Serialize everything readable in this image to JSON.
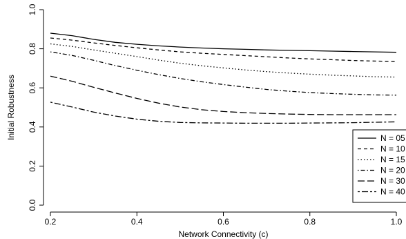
{
  "chart_data": {
    "type": "line",
    "title": "",
    "xlabel": "Network Connectivity (c)",
    "ylabel": "Initial Robustness",
    "xlim": [
      0.2,
      1.0
    ],
    "ylim": [
      0.0,
      1.0
    ],
    "x_ticks": [
      "0.2",
      "0.4",
      "0.6",
      "0.8",
      "1.0"
    ],
    "y_ticks": [
      "0.0",
      "0.2",
      "0.4",
      "0.6",
      "0.8",
      "1.0"
    ],
    "grid": false,
    "legend_position": "bottom-right",
    "x": [
      0.2,
      0.25,
      0.3,
      0.35,
      0.4,
      0.45,
      0.5,
      0.55,
      0.6,
      0.65,
      0.7,
      0.75,
      0.8,
      0.85,
      0.9,
      0.95,
      1.0
    ],
    "series": [
      {
        "name": "N = 05",
        "dash": "solid",
        "values": [
          0.88,
          0.867,
          0.848,
          0.833,
          0.823,
          0.815,
          0.809,
          0.804,
          0.8,
          0.797,
          0.794,
          0.792,
          0.79,
          0.788,
          0.786,
          0.784,
          0.782
        ]
      },
      {
        "name": "N = 10",
        "dash": "dashed",
        "values": [
          0.855,
          0.844,
          0.83,
          0.817,
          0.805,
          0.794,
          0.784,
          0.777,
          0.771,
          0.765,
          0.759,
          0.753,
          0.748,
          0.744,
          0.74,
          0.737,
          0.735
        ]
      },
      {
        "name": "N = 15",
        "dash": "dotted",
        "values": [
          0.825,
          0.812,
          0.794,
          0.777,
          0.76,
          0.742,
          0.726,
          0.713,
          0.702,
          0.692,
          0.683,
          0.676,
          0.67,
          0.665,
          0.661,
          0.657,
          0.655
        ]
      },
      {
        "name": "N = 20",
        "dash": "dotdash",
        "values": [
          0.784,
          0.766,
          0.741,
          0.714,
          0.69,
          0.668,
          0.648,
          0.631,
          0.617,
          0.604,
          0.592,
          0.583,
          0.576,
          0.571,
          0.567,
          0.564,
          0.563
        ]
      },
      {
        "name": "N = 30",
        "dash": "longdash",
        "values": [
          0.66,
          0.634,
          0.603,
          0.574,
          0.546,
          0.522,
          0.502,
          0.488,
          0.479,
          0.473,
          0.469,
          0.466,
          0.464,
          0.463,
          0.463,
          0.463,
          0.463
        ]
      },
      {
        "name": "N = 40",
        "dash": "twodash",
        "values": [
          0.527,
          0.502,
          0.476,
          0.456,
          0.44,
          0.429,
          0.423,
          0.421,
          0.42,
          0.419,
          0.419,
          0.419,
          0.42,
          0.421,
          0.422,
          0.424,
          0.426
        ]
      }
    ]
  }
}
